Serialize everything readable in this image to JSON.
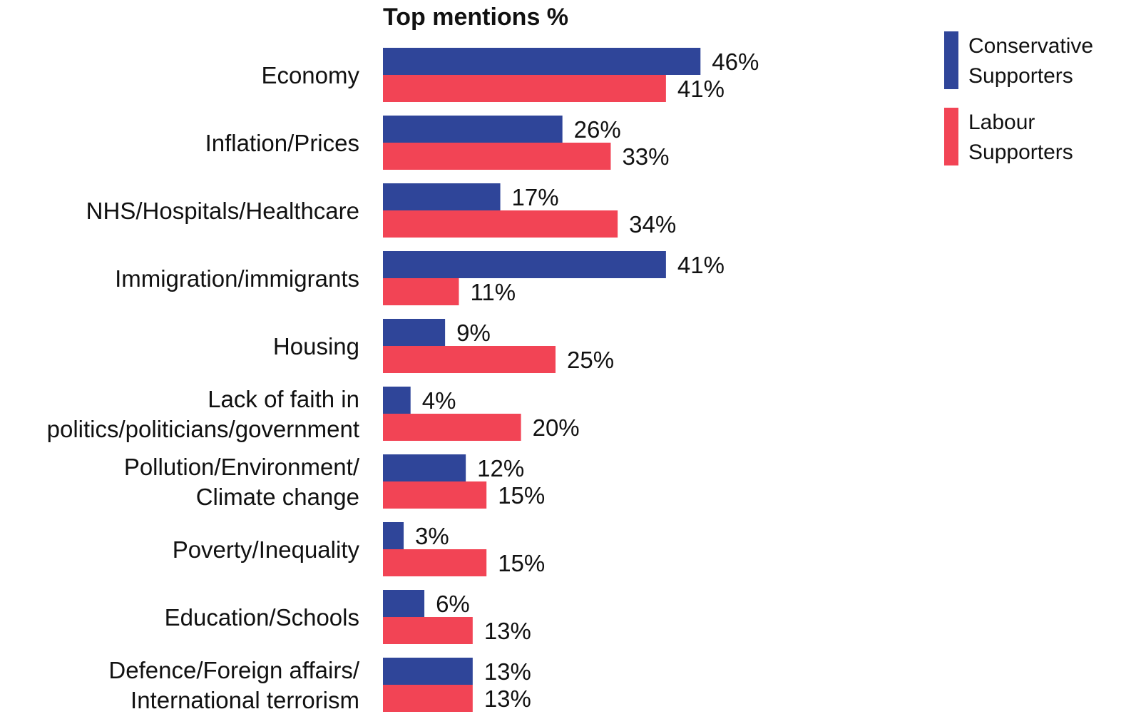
{
  "chart_data": {
    "type": "bar",
    "orientation": "horizontal",
    "title": "Top mentions %",
    "categories": [
      [
        "Economy"
      ],
      [
        "Inflation/Prices"
      ],
      [
        "NHS/Hospitals/Healthcare"
      ],
      [
        "Immigration/immigrants"
      ],
      [
        "Housing"
      ],
      [
        "Lack of faith in",
        "politics/politicians/government"
      ],
      [
        "Pollution/Environment/",
        "Climate change"
      ],
      [
        "Poverty/Inequality"
      ],
      [
        "Education/Schools"
      ],
      [
        "Defence/Foreign affairs/",
        "International terrorism"
      ]
    ],
    "series": [
      {
        "name": "Conservative Supporters",
        "legend_lines": [
          "Conservative",
          "Supporters"
        ],
        "color": "#2f4599",
        "values": [
          46,
          26,
          17,
          41,
          9,
          4,
          12,
          3,
          6,
          13
        ]
      },
      {
        "name": "Labour Supporters",
        "legend_lines": [
          "Labour",
          "Supporters"
        ],
        "color": "#f24455",
        "values": [
          41,
          33,
          34,
          11,
          25,
          20,
          15,
          15,
          13,
          13
        ]
      }
    ],
    "value_suffix": "%",
    "xlim": [
      0,
      50
    ],
    "grid": false,
    "axis_visible": false,
    "legend_position": "top-right"
  }
}
